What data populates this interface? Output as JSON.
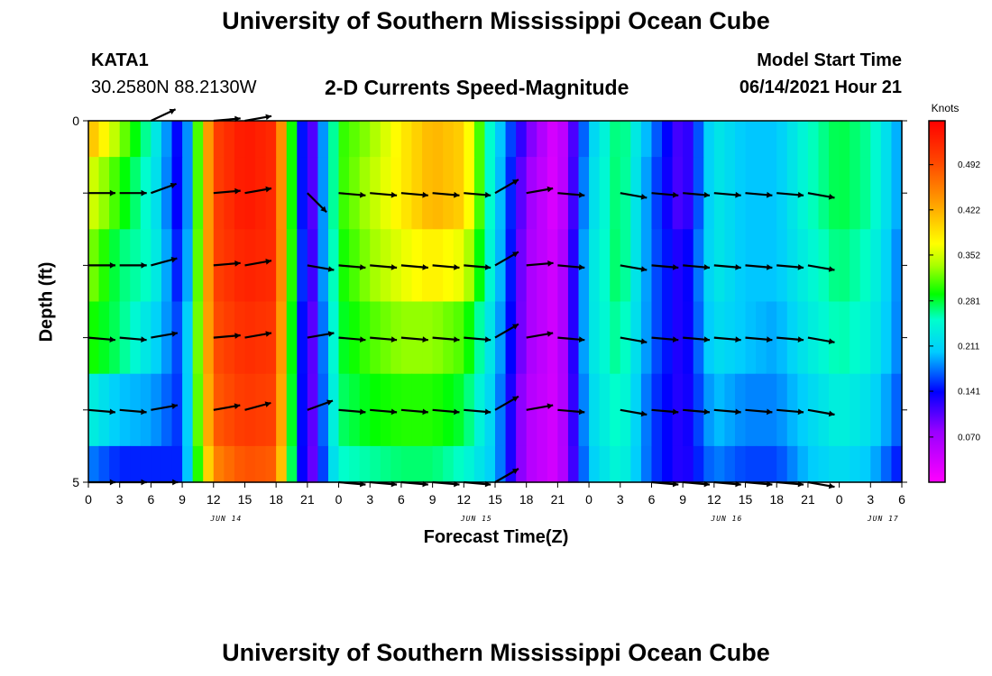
{
  "header": {
    "title": "University of Southern Mississippi Ocean Cube",
    "station": "KATA1",
    "coords": "30.2580N  88.2130W",
    "subtitle": "2-D Currents Speed-Magnitude",
    "model_label": "Model Start Time",
    "model_time": "06/14/2021 Hour 21"
  },
  "footer": {
    "title": "University of Southern Mississippi Ocean Cube"
  },
  "chart_data": {
    "type": "heatmap",
    "xlabel": "Forecast Time(Z)",
    "ylabel": "Depth (ft)",
    "colorbar_label": "Knots",
    "colorbar_ticks": [
      "0.070",
      "0.141",
      "0.211",
      "0.281",
      "0.352",
      "0.422",
      "0.492"
    ],
    "colorbar_values": [
      0.07,
      0.141,
      0.211,
      0.281,
      0.352,
      0.422,
      0.492
    ],
    "colorbar_range": [
      0.0,
      0.56
    ],
    "y_ticks": [
      "0",
      "5"
    ],
    "y_range": [
      0,
      5
    ],
    "x_tick_labels": [
      "0",
      "3",
      "6",
      "9",
      "12",
      "15",
      "18",
      "21",
      "0",
      "3",
      "6",
      "9",
      "12",
      "15",
      "18",
      "21",
      "0",
      "3",
      "6",
      "9",
      "12",
      "15",
      "18",
      "21",
      "0",
      "3",
      "6"
    ],
    "date_labels": [
      {
        "label": "JUN 14",
        "tick_index": 4
      },
      {
        "label": "JUN 15",
        "tick_index": 12
      },
      {
        "label": "JUN 16",
        "tick_index": 20
      },
      {
        "label": "JUN 17",
        "tick_index": 25
      }
    ],
    "time_hours": [
      0,
      3,
      6,
      9,
      12,
      15,
      18,
      21,
      24,
      27,
      30,
      33,
      36,
      39,
      42,
      45,
      48,
      51,
      54,
      57,
      60,
      63,
      66,
      69,
      72,
      75,
      78
    ],
    "depth_ft": [
      0,
      1,
      2,
      3,
      4,
      5
    ],
    "speed_knots": [
      [
        0.42,
        0.33,
        0.25,
        0.12,
        0.5,
        0.54,
        0.52,
        0.07,
        0.3,
        0.33,
        0.38,
        0.42,
        0.4,
        0.22,
        0.1,
        0.02,
        0.2,
        0.28,
        0.18,
        0.1,
        0.23,
        0.2,
        0.2,
        0.25,
        0.28,
        0.26,
        0.18
      ],
      [
        0.36,
        0.3,
        0.24,
        0.12,
        0.5,
        0.54,
        0.52,
        0.07,
        0.3,
        0.34,
        0.38,
        0.42,
        0.4,
        0.22,
        0.08,
        0.02,
        0.21,
        0.28,
        0.17,
        0.1,
        0.23,
        0.2,
        0.2,
        0.25,
        0.28,
        0.26,
        0.18
      ],
      [
        0.33,
        0.27,
        0.25,
        0.13,
        0.5,
        0.53,
        0.52,
        0.08,
        0.29,
        0.33,
        0.36,
        0.38,
        0.36,
        0.22,
        0.07,
        0.03,
        0.22,
        0.28,
        0.17,
        0.12,
        0.23,
        0.2,
        0.2,
        0.24,
        0.27,
        0.25,
        0.17
      ],
      [
        0.3,
        0.27,
        0.22,
        0.15,
        0.49,
        0.52,
        0.51,
        0.07,
        0.28,
        0.31,
        0.33,
        0.33,
        0.31,
        0.21,
        0.07,
        0.03,
        0.22,
        0.27,
        0.17,
        0.12,
        0.22,
        0.2,
        0.19,
        0.23,
        0.26,
        0.24,
        0.17
      ],
      [
        0.24,
        0.2,
        0.19,
        0.15,
        0.48,
        0.51,
        0.5,
        0.07,
        0.27,
        0.29,
        0.3,
        0.3,
        0.28,
        0.2,
        0.06,
        0.03,
        0.21,
        0.26,
        0.16,
        0.12,
        0.2,
        0.18,
        0.18,
        0.21,
        0.24,
        0.22,
        0.16
      ],
      [
        0.18,
        0.15,
        0.15,
        0.15,
        0.45,
        0.49,
        0.48,
        0.07,
        0.25,
        0.26,
        0.27,
        0.27,
        0.25,
        0.2,
        0.06,
        0.03,
        0.2,
        0.25,
        0.16,
        0.12,
        0.18,
        0.16,
        0.16,
        0.2,
        0.22,
        0.2,
        0.14
      ]
    ],
    "vector_directions_deg": [
      [
        null,
        null,
        65,
        null,
        85,
        80,
        null,
        null,
        null,
        null,
        null,
        null,
        null,
        null,
        null,
        null,
        null,
        null,
        null,
        null,
        null,
        null,
        null,
        null,
        null,
        null,
        null
      ],
      [
        90,
        90,
        70,
        null,
        85,
        80,
        null,
        135,
        95,
        95,
        95,
        95,
        95,
        60,
        80,
        95,
        null,
        100,
        95,
        95,
        95,
        95,
        95,
        100,
        null,
        null,
        null
      ],
      [
        90,
        90,
        75,
        null,
        85,
        80,
        null,
        100,
        95,
        95,
        95,
        95,
        95,
        60,
        85,
        95,
        null,
        100,
        95,
        95,
        95,
        95,
        95,
        100,
        null,
        null,
        null
      ],
      [
        95,
        95,
        80,
        null,
        85,
        80,
        null,
        80,
        95,
        95,
        95,
        95,
        95,
        60,
        80,
        95,
        null,
        100,
        95,
        95,
        95,
        95,
        95,
        100,
        null,
        null,
        null
      ],
      [
        95,
        95,
        80,
        null,
        80,
        75,
        null,
        70,
        95,
        95,
        95,
        95,
        95,
        60,
        80,
        95,
        null,
        100,
        95,
        95,
        95,
        95,
        95,
        100,
        null,
        null,
        null
      ],
      [
        90,
        90,
        90,
        null,
        null,
        null,
        null,
        null,
        95,
        95,
        95,
        95,
        95,
        60,
        null,
        null,
        null,
        null,
        95,
        95,
        95,
        95,
        95,
        100,
        null,
        null,
        null
      ]
    ]
  }
}
